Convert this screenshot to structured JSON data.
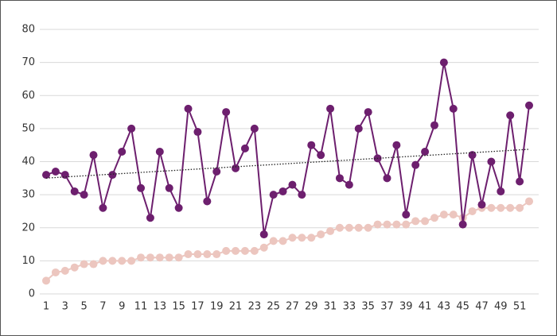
{
  "chart_data": {
    "type": "line",
    "x": [
      1,
      2,
      3,
      4,
      5,
      6,
      7,
      8,
      9,
      10,
      11,
      12,
      13,
      14,
      15,
      16,
      17,
      18,
      19,
      20,
      21,
      22,
      23,
      24,
      25,
      26,
      27,
      28,
      29,
      30,
      31,
      32,
      33,
      34,
      35,
      36,
      37,
      38,
      39,
      40,
      41,
      42,
      43,
      44,
      45,
      46,
      47,
      48,
      49,
      50,
      51,
      52
    ],
    "xlim": [
      1,
      52
    ],
    "xticks": [
      1,
      3,
      5,
      7,
      9,
      11,
      13,
      15,
      17,
      19,
      21,
      23,
      25,
      27,
      29,
      31,
      33,
      35,
      37,
      39,
      41,
      43,
      45,
      47,
      49,
      51
    ],
    "ylim": [
      0,
      80
    ],
    "yticks": [
      0,
      10,
      20,
      30,
      40,
      50,
      60,
      70,
      80
    ],
    "grid": true,
    "trendline": true,
    "series": [
      {
        "color": "#ecc6bf",
        "values": [
          4,
          6.5,
          7,
          8,
          9,
          9,
          10,
          10,
          10,
          10,
          11,
          11,
          11,
          11,
          11,
          12,
          12,
          12,
          12,
          13,
          13,
          13,
          13,
          14,
          16,
          16,
          17,
          17,
          17,
          18,
          19,
          20,
          20,
          20,
          20,
          21,
          21,
          21,
          21,
          22,
          22,
          23,
          24,
          24,
          23,
          25,
          26,
          26,
          26,
          26,
          26,
          28
        ]
      },
      {
        "color": "#6d1f6e",
        "values": [
          36,
          37,
          36,
          31,
          30,
          42,
          26,
          36,
          43,
          50,
          32,
          23,
          43,
          32,
          26,
          56,
          49,
          28,
          37,
          55,
          38,
          44,
          50,
          18,
          30,
          31,
          33,
          30,
          45,
          42,
          56,
          35,
          33,
          50,
          55,
          41,
          35,
          45,
          24,
          39,
          43,
          51,
          70,
          56,
          21,
          42,
          27,
          40,
          31,
          54,
          34,
          57
        ]
      }
    ]
  }
}
